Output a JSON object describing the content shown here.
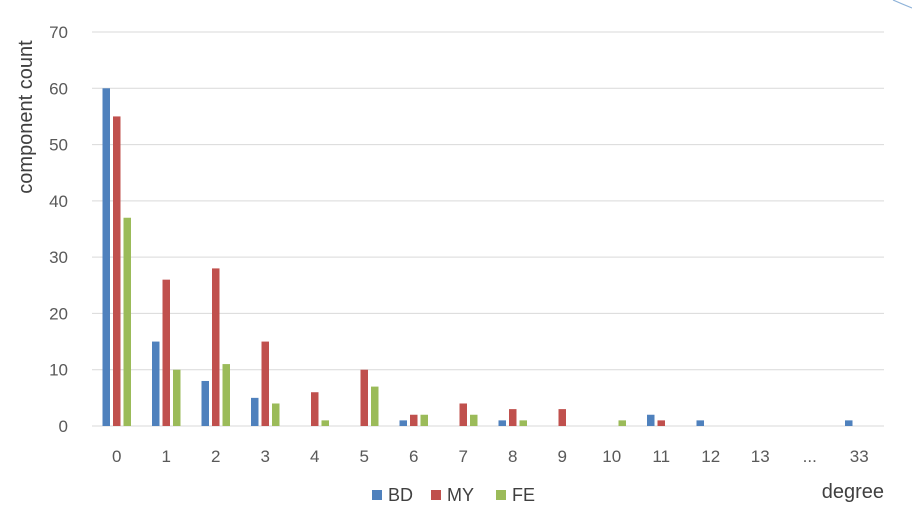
{
  "chart_data": {
    "type": "bar",
    "title": "",
    "xlabel": "degree",
    "ylabel": "component count",
    "categories": [
      "0",
      "1",
      "2",
      "3",
      "4",
      "5",
      "6",
      "7",
      "8",
      "9",
      "10",
      "11",
      "12",
      "13",
      "...",
      "33"
    ],
    "series": [
      {
        "name": "BD",
        "color": "#4f81bd",
        "values": [
          60,
          15,
          8,
          5,
          0,
          0,
          1,
          0,
          1,
          0,
          0,
          2,
          1,
          0,
          0,
          1
        ]
      },
      {
        "name": "MY",
        "color": "#c0504d",
        "values": [
          55,
          26,
          28,
          15,
          6,
          10,
          2,
          4,
          3,
          3,
          0,
          1,
          0,
          0,
          0,
          0
        ]
      },
      {
        "name": "FE",
        "color": "#9bbb59",
        "values": [
          37,
          10,
          11,
          4,
          1,
          7,
          2,
          2,
          1,
          0,
          1,
          0,
          0,
          0,
          0,
          0
        ]
      }
    ],
    "yticks": [
      "0",
      "10",
      "20",
      "30",
      "40",
      "50",
      "60",
      "70"
    ],
    "ylim": [
      0,
      70
    ],
    "grid": true,
    "legend_position": "bottom"
  }
}
